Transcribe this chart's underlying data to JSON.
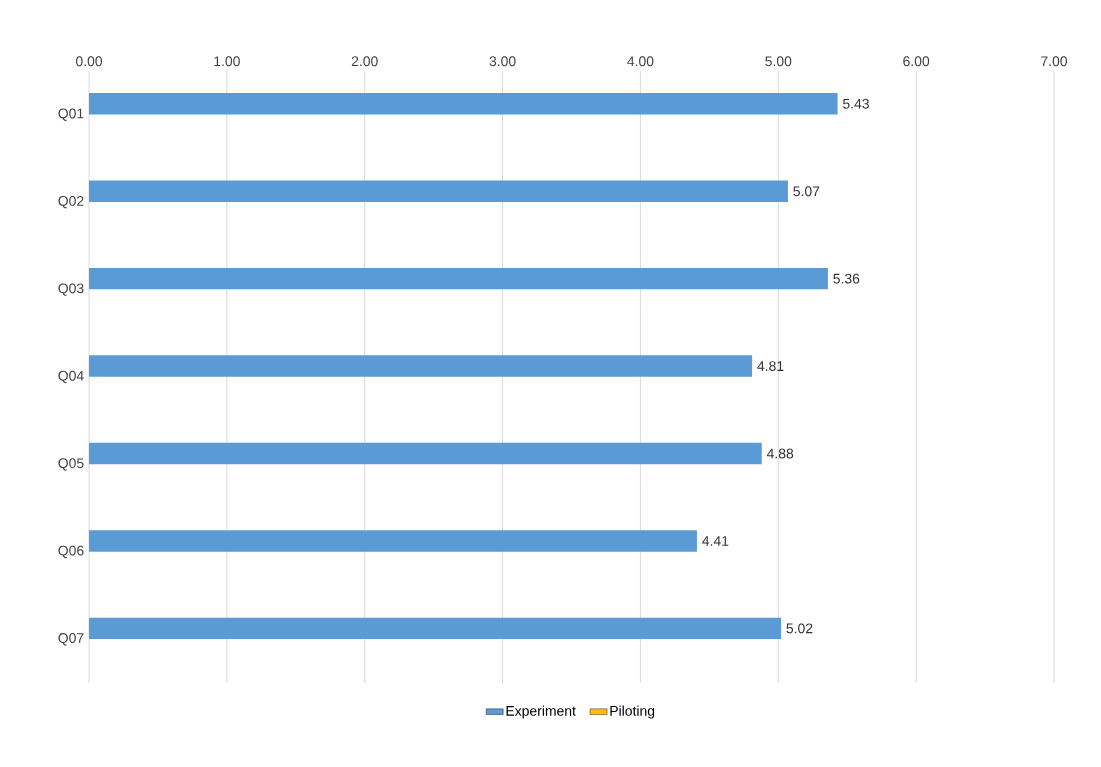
{
  "chart_data": {
    "type": "bar",
    "orientation": "horizontal",
    "categories": [
      "Q01",
      "Q02",
      "Q03",
      "Q04",
      "Q05",
      "Q06",
      "Q07"
    ],
    "series": [
      {
        "name": "Experiment",
        "color": "#5b9bd5",
        "values": [
          5.43,
          5.07,
          5.36,
          4.81,
          4.88,
          4.41,
          5.02
        ]
      },
      {
        "name": "Piloting",
        "color": "#ffc000",
        "values": [
          null,
          null,
          null,
          null,
          null,
          null,
          null
        ]
      }
    ],
    "xlim": [
      0,
      7
    ],
    "xticks": [
      {
        "value": 0,
        "label": "0.00"
      },
      {
        "value": 1,
        "label": "1.00"
      },
      {
        "value": 2,
        "label": "2.00"
      },
      {
        "value": 3,
        "label": "3.00"
      },
      {
        "value": 4,
        "label": "4.00"
      },
      {
        "value": 5,
        "label": "5.00"
      },
      {
        "value": 6,
        "label": "6.00"
      },
      {
        "value": 7,
        "label": "7.00"
      }
    ],
    "grid": "x",
    "legend": "bottom",
    "data_labels": true
  }
}
